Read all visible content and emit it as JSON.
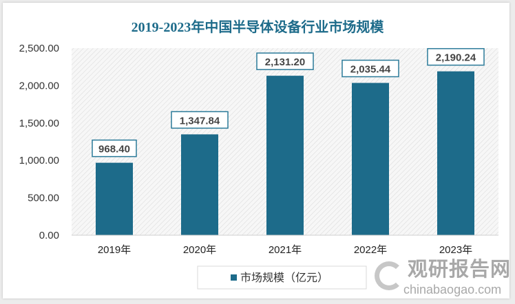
{
  "chart_data": {
    "type": "bar",
    "title": "2019-2023年中国半导体设备行业市场规模",
    "categories": [
      "2019年",
      "2020年",
      "2021年",
      "2022年",
      "2023年"
    ],
    "series": [
      {
        "name": "市场规模（亿元）",
        "values": [
          968.4,
          1347.84,
          2131.2,
          2035.44,
          2190.24
        ]
      }
    ],
    "data_labels": [
      "968.40",
      "1,347.84",
      "2,131.20",
      "2,035.44",
      "2,190.24"
    ],
    "yticks": [
      "0.00",
      "500.00",
      "1,000.00",
      "1,500.00",
      "2,000.00",
      "2,500.00"
    ],
    "ylim": [
      0,
      2500
    ],
    "legend_position": "bottom",
    "grid": false,
    "colors": {
      "bar": "#1d6b8a",
      "title": "#1d6b8a"
    }
  },
  "watermark": {
    "name": "观研报告网",
    "url": "chinabaogao.com"
  }
}
